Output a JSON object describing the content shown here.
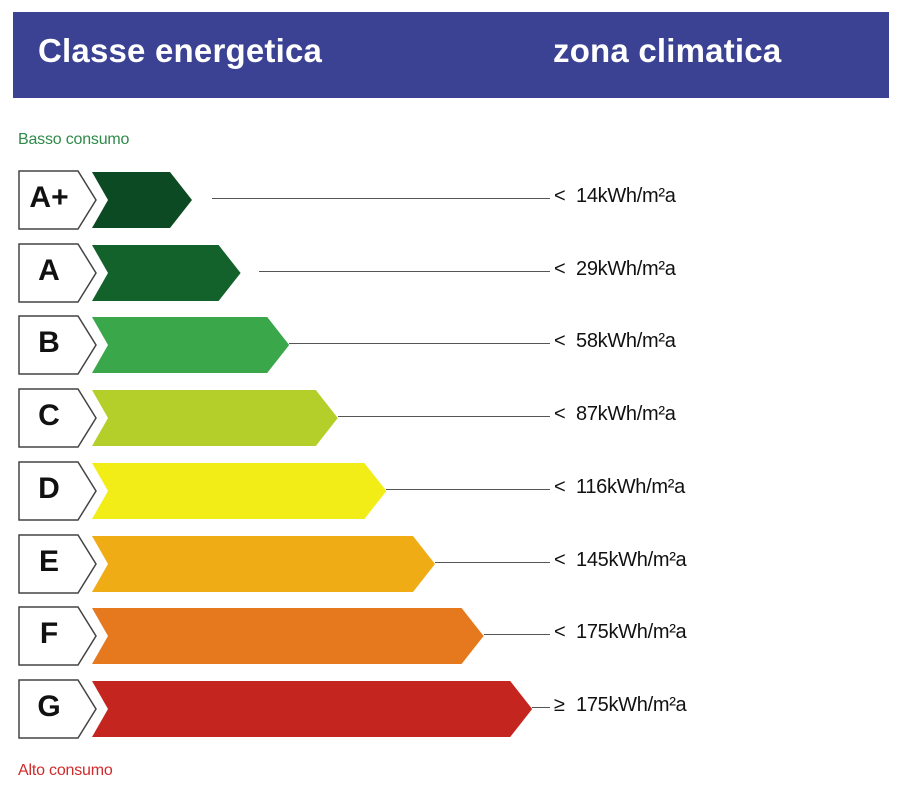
{
  "header": {
    "left_title": "Classe energetica",
    "right_title": "zona climatica"
  },
  "captions": {
    "low": "Basso consumo",
    "high": "Alto consumo"
  },
  "classes": [
    {
      "letter": "A+",
      "cmp": "<",
      "value": "14",
      "unit": "kWh/m²a",
      "color": "#0b4a22"
    },
    {
      "letter": "A",
      "cmp": "<",
      "value": "29",
      "unit": "kWh/m²a",
      "color": "#13622c"
    },
    {
      "letter": "B",
      "cmp": "<",
      "value": "58",
      "unit": "kWh/m²a",
      "color": "#3aa74a"
    },
    {
      "letter": "C",
      "cmp": "<",
      "value": "87",
      "unit": "kWh/m²a",
      "color": "#b5cf2a"
    },
    {
      "letter": "D",
      "cmp": "<",
      "value": "116",
      "unit": "kWh/m²a",
      "color": "#f2ed17"
    },
    {
      "letter": "E",
      "cmp": "<",
      "value": "145",
      "unit": "kWh/m²a",
      "color": "#f0ac14"
    },
    {
      "letter": "F",
      "cmp": "<",
      "value": "175",
      "unit": "kWh/m²a",
      "color": "#e6781e"
    },
    {
      "letter": "G",
      "cmp": "≥",
      "value": "175",
      "unit": "kWh/m²a",
      "color": "#c4261f"
    }
  ]
}
